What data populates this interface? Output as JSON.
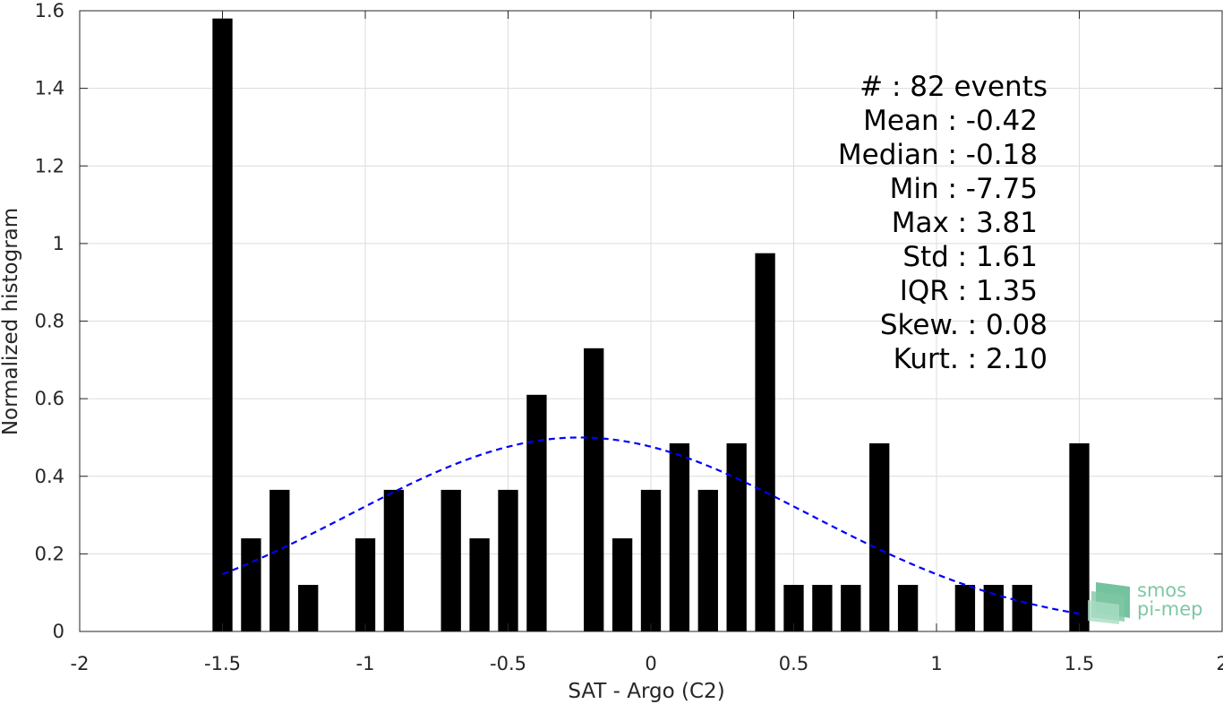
{
  "chart_data": {
    "type": "bar",
    "xlabel": "SAT - Argo (C2)",
    "ylabel": "Normalized histogram",
    "xlim": [
      -2,
      2
    ],
    "ylim": [
      0,
      1.6
    ],
    "xticks": [
      -2,
      -1.5,
      -1,
      -0.5,
      0,
      0.5,
      1,
      1.5,
      2
    ],
    "xtick_labels": [
      "-2",
      "-1.5",
      "-1",
      "-0.5",
      "0",
      "0.5",
      "1",
      "1.5",
      "2"
    ],
    "yticks": [
      0,
      0.2,
      0.4,
      0.6,
      0.8,
      1,
      1.2,
      1.4,
      1.6
    ],
    "ytick_labels": [
      "0",
      "0.2",
      "0.4",
      "0.6",
      "0.8",
      "1",
      "1.2",
      "1.4",
      "1.6"
    ],
    "grid": true,
    "bin_width": 0.07,
    "bars": [
      {
        "x": -1.5,
        "y": 1.58
      },
      {
        "x": -1.4,
        "y": 0.24
      },
      {
        "x": -1.3,
        "y": 0.365
      },
      {
        "x": -1.2,
        "y": 0.12
      },
      {
        "x": -1.0,
        "y": 0.24
      },
      {
        "x": -0.9,
        "y": 0.365
      },
      {
        "x": -0.7,
        "y": 0.365
      },
      {
        "x": -0.6,
        "y": 0.24
      },
      {
        "x": -0.5,
        "y": 0.365
      },
      {
        "x": -0.4,
        "y": 0.61
      },
      {
        "x": -0.2,
        "y": 0.73
      },
      {
        "x": -0.1,
        "y": 0.24
      },
      {
        "x": 0.0,
        "y": 0.365
      },
      {
        "x": 0.1,
        "y": 0.485
      },
      {
        "x": 0.2,
        "y": 0.365
      },
      {
        "x": 0.3,
        "y": 0.485
      },
      {
        "x": 0.4,
        "y": 0.975
      },
      {
        "x": 0.5,
        "y": 0.12
      },
      {
        "x": 0.6,
        "y": 0.12
      },
      {
        "x": 0.7,
        "y": 0.12
      },
      {
        "x": 0.8,
        "y": 0.485
      },
      {
        "x": 0.9,
        "y": 0.12
      },
      {
        "x": 1.1,
        "y": 0.12
      },
      {
        "x": 1.2,
        "y": 0.12
      },
      {
        "x": 1.3,
        "y": 0.12
      },
      {
        "x": 1.5,
        "y": 0.485
      }
    ],
    "fit_curve": {
      "style": "dashed",
      "color": "#0000ff",
      "x_range": [
        -1.5,
        1.5
      ],
      "mean": -0.25,
      "std": 0.8,
      "peak": 0.5
    },
    "bar_color": "#000000",
    "grid_color": "#dcdcdc"
  },
  "stats": {
    "events": "#  : 82 events",
    "mean": "Mean : -0.42",
    "median": "Median : -0.18",
    "min": "Min : -7.75",
    "max": "Max : 3.81",
    "std": "Std : 1.61",
    "iqr": "IQR : 1.35",
    "skew": "Skew. : 0.08",
    "kurt": "Kurt. : 2.10"
  },
  "logo": {
    "line1": "smos",
    "line2": "pi-mep",
    "color": "#7fc7a5"
  }
}
